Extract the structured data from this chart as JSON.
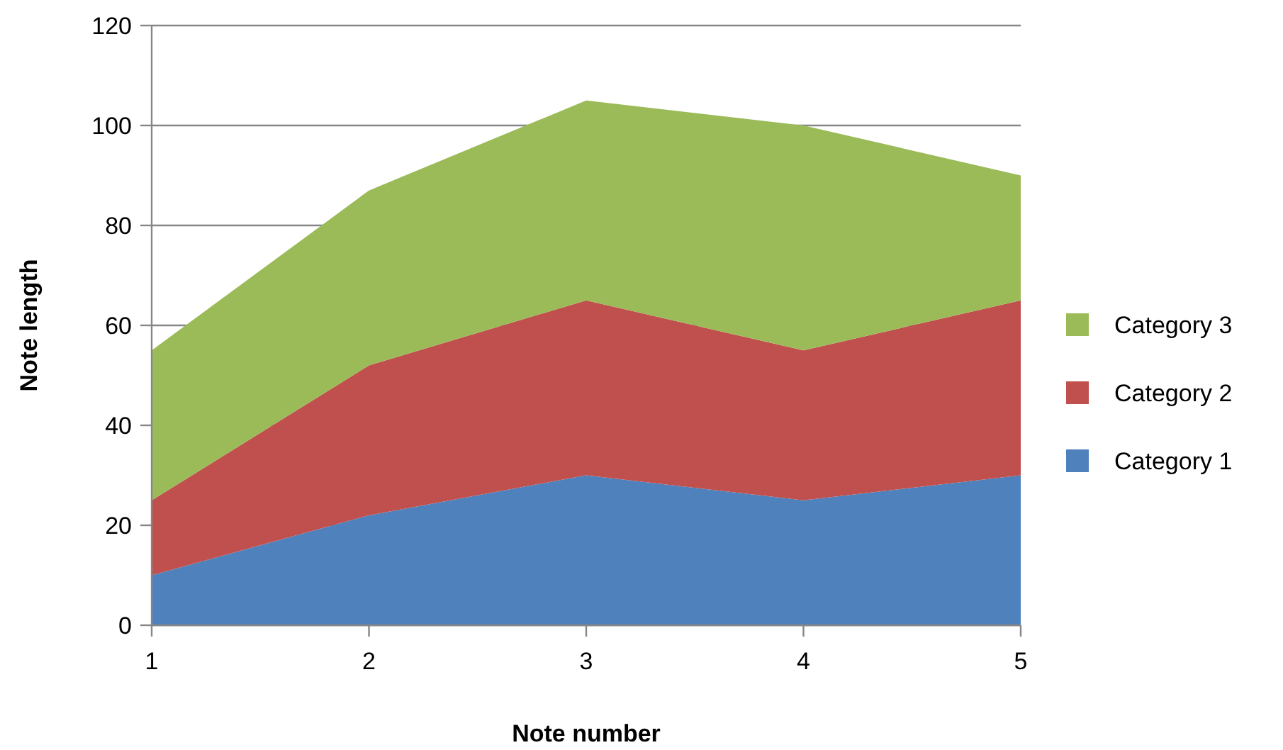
{
  "chart_data": {
    "type": "area",
    "stacked": true,
    "xlabel": "Note number",
    "ylabel": "Note length",
    "x": [
      1,
      2,
      3,
      4,
      5
    ],
    "xlim": [
      1,
      5
    ],
    "xticks": [
      1,
      2,
      3,
      4,
      5
    ],
    "ylim": [
      0,
      120
    ],
    "yticks": [
      0,
      20,
      40,
      60,
      80,
      100,
      120
    ],
    "grid": "y",
    "legend": "right",
    "series": [
      {
        "name": "Category 1",
        "color": "#4f81bd",
        "values": [
          10,
          22,
          30,
          25,
          30
        ]
      },
      {
        "name": "Category 2",
        "color": "#c0504d",
        "values": [
          15,
          30,
          35,
          30,
          35
        ]
      },
      {
        "name": "Category 3",
        "color": "#9bbb59",
        "values": [
          30,
          35,
          40,
          45,
          25
        ]
      }
    ]
  }
}
